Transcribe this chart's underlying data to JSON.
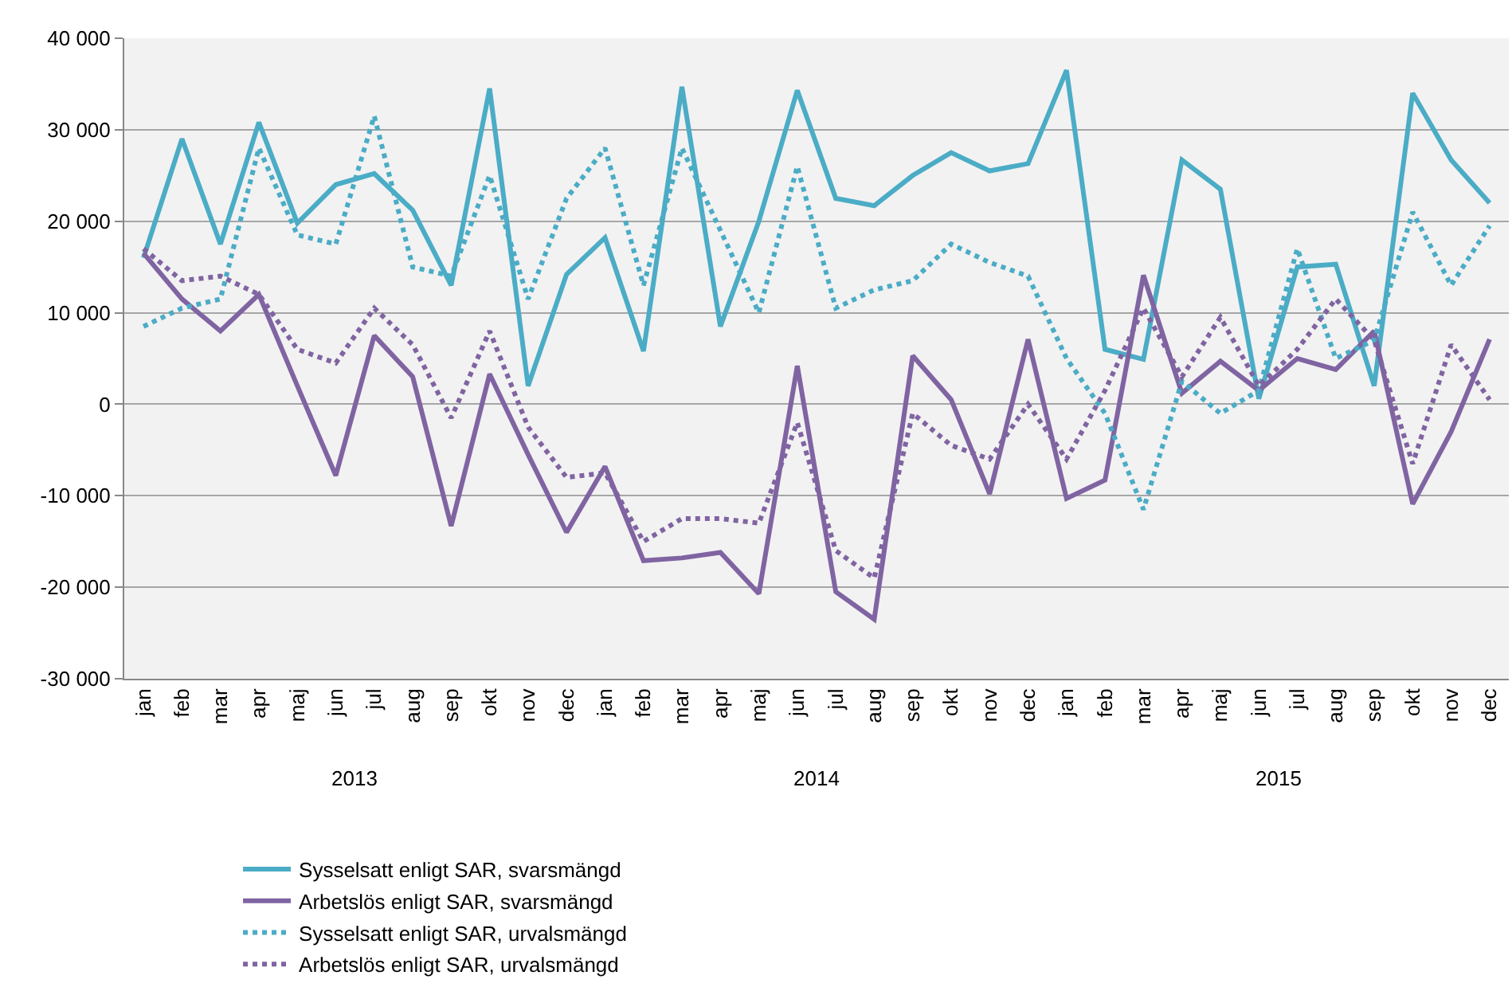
{
  "chart_data": {
    "type": "line",
    "categories": [
      "jan",
      "feb",
      "mar",
      "apr",
      "maj",
      "jun",
      "jul",
      "aug",
      "sep",
      "okt",
      "nov",
      "dec",
      "jan",
      "feb",
      "mar",
      "apr",
      "maj",
      "jun",
      "jul",
      "aug",
      "sep",
      "okt",
      "nov",
      "dec",
      "jan",
      "feb",
      "mar",
      "apr",
      "maj",
      "jun",
      "jul",
      "aug",
      "sep",
      "okt",
      "nov",
      "dec"
    ],
    "annotations": [
      "2013",
      "2014",
      "2015"
    ],
    "series": [
      {
        "name": "Sysselsatt enligt SAR, svarsmängd",
        "color": "#4bacc6",
        "line_style": "solid",
        "values": [
          16000,
          29000,
          17500,
          30800,
          19800,
          24000,
          25200,
          21200,
          13000,
          34500,
          2000,
          14200,
          18200,
          5800,
          34700,
          8500,
          20000,
          34300,
          22500,
          21700,
          25000,
          27500,
          25500,
          26300,
          36500,
          6000,
          4900,
          26700,
          23500,
          600,
          15000,
          15300,
          2000,
          34000,
          26700,
          22000
        ]
      },
      {
        "name": "Arbetslös enligt SAR, svarsmängd",
        "color": "#8064a2",
        "line_style": "solid",
        "values": [
          16500,
          11500,
          8000,
          12000,
          2000,
          -7800,
          7500,
          3000,
          -13300,
          3300,
          -5500,
          -14000,
          -6800,
          -17100,
          -16800,
          -16200,
          -20700,
          4200,
          -20500,
          -23500,
          5300,
          500,
          -9800,
          7100,
          -10300,
          -8300,
          14100,
          1200,
          4700,
          1500,
          5000,
          3800,
          8000,
          -10900,
          -3000,
          7100
        ]
      },
      {
        "name": "Sysselsatt enligt SAR, urvalsmängd",
        "color": "#4bacc6",
        "line_style": "dotted",
        "values": [
          8500,
          10500,
          11500,
          28000,
          18500,
          17500,
          31500,
          15000,
          14000,
          25000,
          11500,
          22500,
          28000,
          13000,
          28000,
          19000,
          10000,
          26000,
          10500,
          12500,
          13500,
          17500,
          15500,
          14000,
          5000,
          -1000,
          -11500,
          2500,
          -1000,
          1500,
          17000,
          5000,
          7000,
          21000,
          13000,
          19500
        ]
      },
      {
        "name": "Arbetslös enligt SAR, urvalsmängd",
        "color": "#8064a2",
        "line_style": "dotted",
        "values": [
          17000,
          13500,
          14000,
          12000,
          6000,
          4500,
          10500,
          6500,
          -1500,
          8000,
          -2500,
          -8000,
          -7500,
          -15000,
          -12500,
          -12500,
          -13000,
          -2000,
          -16000,
          -19000,
          -1000,
          -4500,
          -6000,
          0,
          -6000,
          1500,
          10500,
          3000,
          9500,
          2000,
          6000,
          11500,
          7000,
          -6500,
          6500,
          500
        ]
      }
    ],
    "ylim": [
      -30000,
      40000
    ],
    "yticks": [
      {
        "value": -30000,
        "label": "-30 000"
      },
      {
        "value": -20000,
        "label": "-20 000"
      },
      {
        "value": -10000,
        "label": "-10 000"
      },
      0,
      {
        "value": 10000,
        "label": "10 000"
      },
      {
        "value": 20000,
        "label": "20 000"
      },
      {
        "value": 30000,
        "label": "30 000"
      },
      {
        "value": 40000,
        "label": "40 000"
      }
    ],
    "grid": "y",
    "legend": "bottom",
    "marker": "none"
  }
}
